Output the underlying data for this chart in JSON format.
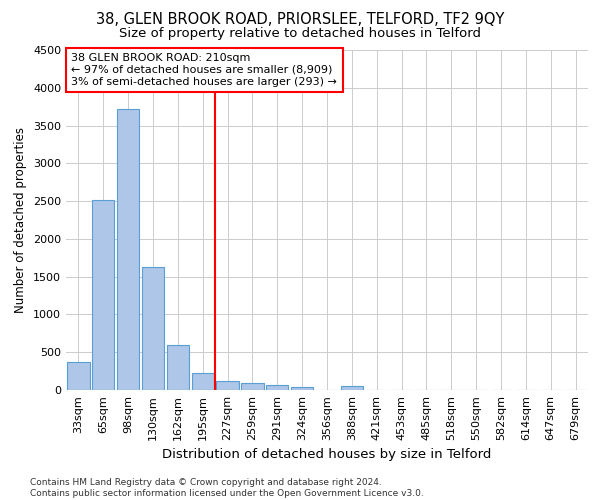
{
  "title1": "38, GLEN BROOK ROAD, PRIORSLEE, TELFORD, TF2 9QY",
  "title2": "Size of property relative to detached houses in Telford",
  "xlabel": "Distribution of detached houses by size in Telford",
  "ylabel": "Number of detached properties",
  "footer": "Contains HM Land Registry data © Crown copyright and database right 2024.\nContains public sector information licensed under the Open Government Licence v3.0.",
  "categories": [
    "33sqm",
    "65sqm",
    "98sqm",
    "130sqm",
    "162sqm",
    "195sqm",
    "227sqm",
    "259sqm",
    "291sqm",
    "324sqm",
    "356sqm",
    "388sqm",
    "421sqm",
    "453sqm",
    "485sqm",
    "518sqm",
    "550sqm",
    "582sqm",
    "614sqm",
    "647sqm",
    "679sqm"
  ],
  "values": [
    370,
    2510,
    3720,
    1630,
    595,
    230,
    120,
    90,
    60,
    40,
    0,
    55,
    0,
    0,
    0,
    0,
    0,
    0,
    0,
    0,
    0
  ],
  "bar_color": "#aec6e8",
  "bar_edge_color": "#5a9fd4",
  "vline_x": 5.5,
  "vline_color": "red",
  "annotation_title": "38 GLEN BROOK ROAD: 210sqm",
  "annotation_line1": "← 97% of detached houses are smaller (8,909)",
  "annotation_line2": "3% of semi-detached houses are larger (293) →",
  "annotation_box_color": "white",
  "annotation_box_edge": "red",
  "ylim": [
    0,
    4500
  ],
  "title1_fontsize": 10.5,
  "title2_fontsize": 9.5,
  "xlabel_fontsize": 9.5,
  "ylabel_fontsize": 8.5,
  "tick_fontsize": 8,
  "annotation_fontsize": 8,
  "footer_fontsize": 6.5
}
